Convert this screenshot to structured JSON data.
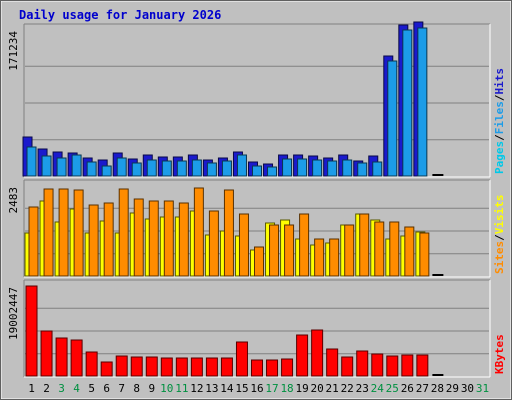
{
  "chart_data": {
    "type": "bar",
    "title": "Daily usage for January 2026",
    "categories": [
      "1",
      "2",
      "3",
      "4",
      "5",
      "6",
      "7",
      "8",
      "9",
      "10",
      "11",
      "12",
      "13",
      "14",
      "15",
      "16",
      "17",
      "18",
      "19",
      "20",
      "21",
      "22",
      "23",
      "24",
      "25",
      "26",
      "27",
      "28",
      "29",
      "30",
      "31"
    ],
    "weekend_days": [
      "3",
      "4",
      "10",
      "11",
      "17",
      "18",
      "24",
      "25",
      "31"
    ],
    "panels": [
      {
        "id": "hits",
        "max_label": "171234",
        "ylim": [
          0,
          171234
        ],
        "right_label": [
          "Pages",
          "Files",
          "Hits"
        ],
        "series": [
          {
            "name": "Hits",
            "color": "#1a1acd",
            "values": [
              46000,
              32000,
              28000,
              27000,
              21000,
              19000,
              27000,
              20000,
              24000,
              22000,
              22000,
              25000,
              19000,
              21000,
              28000,
              16000,
              14000,
              25000,
              25000,
              23000,
              21000,
              24000,
              17000,
              23000,
              140000,
              176000,
              179000,
              0,
              0,
              0,
              0
            ]
          },
          {
            "name": "Files",
            "color": "#1c9ce8",
            "values": [
              34000,
              23000,
              21000,
              24000,
              16000,
              12000,
              21000,
              15000,
              19000,
              18000,
              18000,
              19000,
              15000,
              18000,
              24000,
              12000,
              10000,
              20000,
              20000,
              19000,
              17000,
              19000,
              15000,
              16000,
              134000,
              170000,
              172000,
              0,
              0,
              0,
              0
            ]
          },
          {
            "name": "Pages",
            "color": "#00c8e8",
            "values": [
              0,
              0,
              0,
              0,
              0,
              0,
              0,
              0,
              0,
              0,
              0,
              0,
              0,
              0,
              0,
              0,
              0,
              0,
              0,
              0,
              0,
              0,
              0,
              0,
              0,
              0,
              0,
              0,
              0,
              0,
              0
            ]
          }
        ],
        "right_label_colors": [
          "#00c8e8",
          "#1c9ce8",
          "#1a1acd"
        ]
      },
      {
        "id": "visits",
        "max_label": "2483",
        "ylim": [
          0,
          2483
        ],
        "right_label": [
          "Sites",
          "Visits"
        ],
        "series": [
          {
            "name": "Visits",
            "color": "#ffff00",
            "values": [
              1160,
              2060,
              1480,
              1840,
              1160,
              1500,
              1160,
              1720,
              1560,
              1600,
              1620,
              1780,
              1120,
              1240,
              1100,
              700,
              1440,
              1520,
              1000,
              840,
              900,
              1380,
              1700,
              1540,
              1000,
              1100,
              1200,
              0,
              0,
              0,
              0
            ]
          },
          {
            "name": "Sites",
            "color": "#ff8c00",
            "values": [
              1880,
              2370,
              2370,
              2350,
              1930,
              2000,
              2370,
              2100,
              2050,
              2050,
              2000,
              2400,
              1780,
              2350,
              1700,
              800,
              1380,
              1400,
              1680,
              1000,
              1000,
              1400,
              1680,
              1480,
              1480,
              1340,
              1160,
              0,
              0,
              0,
              0
            ]
          }
        ],
        "right_label_colors": [
          "#ff8c00",
          "#ffff00"
        ]
      },
      {
        "id": "kbytes",
        "max_label": "19002447",
        "ylim": [
          0,
          19002447
        ],
        "right_label": [
          "KBytes"
        ],
        "series": [
          {
            "name": "KBytes",
            "color": "#ff0000",
            "values": [
              18800000,
              9500000,
              7900000,
              7600000,
              5000000,
              2900000,
              4100000,
              3900000,
              3900000,
              3800000,
              3700000,
              3800000,
              3800000,
              3800000,
              7000000,
              3300000,
              3300000,
              3500000,
              8500000,
              9700000,
              5600000,
              4000000,
              5200000,
              4600000,
              4200000,
              4300000,
              4300000,
              0,
              0,
              0,
              0
            ]
          }
        ],
        "right_label_colors": [
          "#ff0000"
        ]
      }
    ],
    "colors": {
      "background": "#c0c0c0",
      "plot": "#c0c0c0",
      "title": "#0000cd",
      "weekday_label": "#000000",
      "weekend_label": "#009040",
      "grid": "#808080"
    }
  }
}
